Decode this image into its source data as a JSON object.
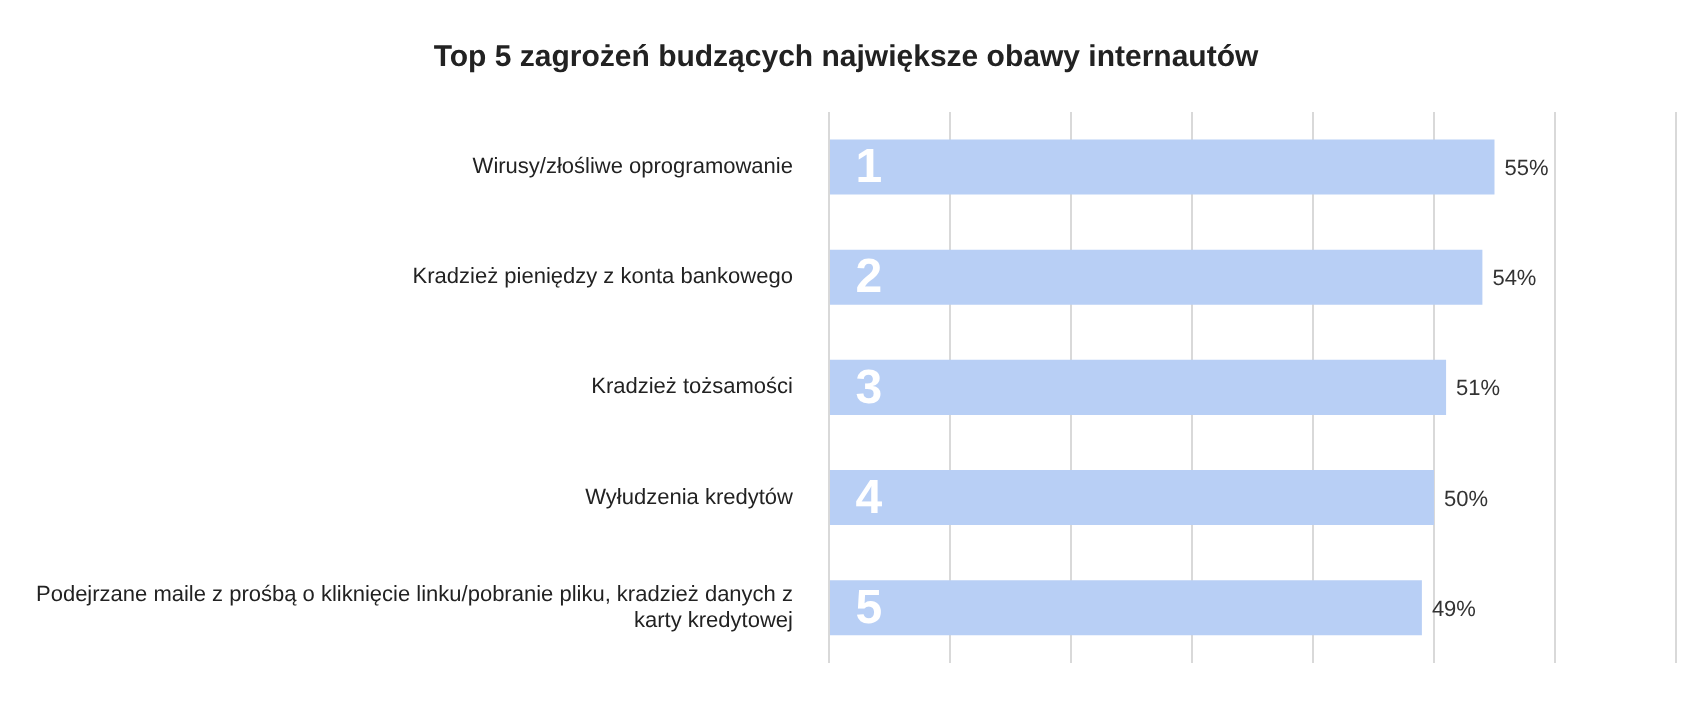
{
  "chart_data": {
    "type": "bar",
    "orientation": "horizontal",
    "title": "Top 5 zagrożeń budzących największe obawy internautów",
    "categories": [
      "Wirusy/złośliwe oprogramowanie",
      "Kradzież pieniędzy z konta bankowego",
      "Kradzież tożsamości",
      "Wyłudzenia kredytów",
      "Podejrzane maile z prośbą o kliknięcie linku/pobranie pliku, kradzież danych z karty kredytowej"
    ],
    "values": [
      55,
      54,
      51,
      50,
      49
    ],
    "value_labels": [
      "55%",
      "54%",
      "51%",
      "50%",
      "49%"
    ],
    "color": "#b8cff5",
    "xlim": [
      0,
      70
    ],
    "xticks": [
      {
        "value": 0,
        "label": null
      },
      {
        "value": 10,
        "label": null
      },
      {
        "value": 20,
        "label": null
      },
      {
        "value": 30,
        "label": null
      },
      {
        "value": 40,
        "label": null
      },
      {
        "value": 50,
        "label": null
      },
      {
        "value": 60,
        "label": null
      },
      {
        "value": 70,
        "label": null
      }
    ],
    "tick_labels": "y",
    "grid": "x",
    "annotations": [
      "1",
      "2",
      "3",
      "4",
      "5"
    ]
  }
}
